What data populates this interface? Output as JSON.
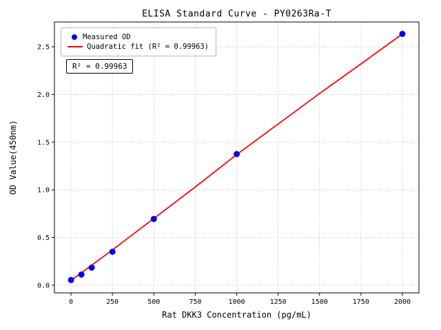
{
  "chart_data": {
    "type": "scatter",
    "title": "ELISA Standard Curve - PY0263Ra-T",
    "xlabel": "Rat DKK3 Concentration (pg/mL)",
    "ylabel": "OD Value(450nm)",
    "xlim": [
      -100,
      2100
    ],
    "ylim": [
      -0.08,
      2.76
    ],
    "xticks": [
      0,
      250,
      500,
      750,
      1000,
      1250,
      1500,
      1750,
      2000
    ],
    "xtick_labels": [
      "0",
      "250",
      "500",
      "750",
      "1000",
      "1250",
      "1500",
      "1750",
      "2000"
    ],
    "yticks": [
      0.0,
      0.5,
      1.0,
      1.5,
      2.0,
      2.5
    ],
    "ytick_labels": [
      "0.0",
      "0.5",
      "1.0",
      "1.5",
      "2.0",
      "2.5"
    ],
    "grid": true,
    "grid_color": "#b0b0b0",
    "legend_position": "upper left",
    "annotation": "R² = 0.99963",
    "series": [
      {
        "name": "Measured OD",
        "type": "scatter",
        "color": "#0000ee",
        "x": [
          0,
          62.5,
          125,
          250,
          500,
          1000,
          2000
        ],
        "y": [
          0.055,
          0.112,
          0.185,
          0.352,
          0.695,
          1.375,
          2.635
        ]
      },
      {
        "name": "Quadratic fit (R² = 0.99963)",
        "type": "line",
        "color": "#ff0000",
        "x": [
          0,
          250,
          500,
          750,
          1000,
          1250,
          1500,
          1750,
          2000
        ],
        "y": [
          0.05,
          0.37,
          0.7,
          1.03,
          1.37,
          1.69,
          2.01,
          2.32,
          2.635
        ]
      }
    ]
  }
}
